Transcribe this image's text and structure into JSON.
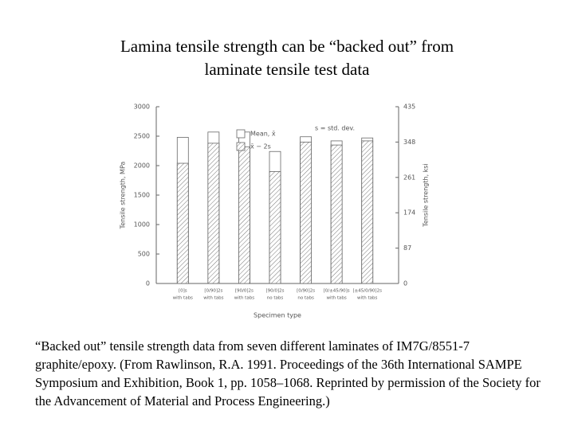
{
  "title": "Lamina tensile strength can be “backed out” from laminate tensile test data",
  "caption": "“Backed out” tensile strength data from seven different laminates of IM7G/8551-7 graphite/epoxy. (From Rawlinson, R.A. 1991. Proceedings of the 36th International SAMPE Symposium and Exhibition, Book 1, pp. 1058–1068. Reprinted by permission of the Society for the Advancement of Material and Process Engineering.)",
  "chart_data": {
    "type": "bar",
    "categories": [
      "[0]s",
      "[0/90]2s",
      "[90/0]2s",
      "[90/0]2s",
      "[0/90]2s",
      "[0/±45/90]s",
      "[±45/0/90]2s"
    ],
    "category_notes": [
      "with tabs",
      "with tabs",
      "with tabs",
      "no tabs",
      "no tabs",
      "with tabs",
      "with tabs"
    ],
    "series": [
      {
        "name": "Mean, x̄",
        "color": "#ffffff",
        "values": [
          2480,
          2570,
          2570,
          2240,
          2490,
          2420,
          2470
        ]
      },
      {
        "name": "x̄ − 2s",
        "color": "hatch",
        "values": [
          2040,
          2380,
          2320,
          1900,
          2400,
          2350,
          2420
        ]
      }
    ],
    "legend_note": "s = std. dev.",
    "xlabel": "Specimen type",
    "ylabel": "Tensile strength, MPa",
    "y2label": "Tensile strength, ksi",
    "ylim": [
      0,
      3000
    ],
    "yticks": [
      0,
      500,
      1000,
      1500,
      2000,
      2500,
      3000
    ],
    "y2lim": [
      0,
      435
    ],
    "y2ticks": [
      0,
      87,
      174,
      261,
      348,
      435
    ]
  }
}
